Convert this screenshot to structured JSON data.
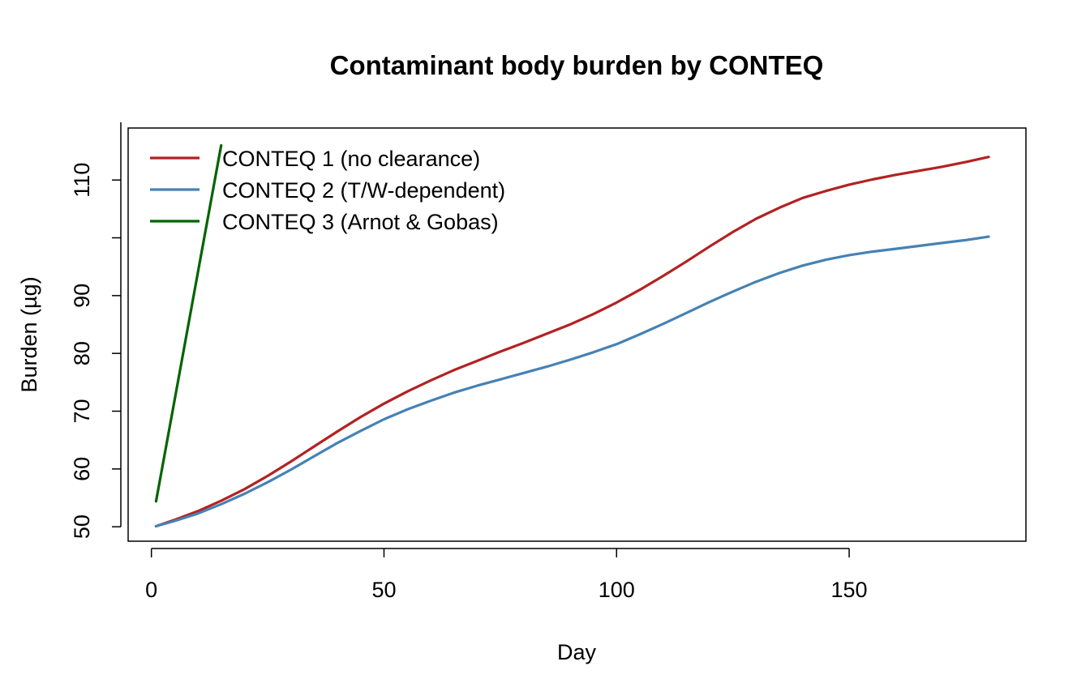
{
  "chart_data": {
    "type": "line",
    "title": "Contaminant body burden by CONTEQ",
    "xlabel": "Day",
    "ylabel": "Burden (µg)",
    "xlim": [
      -5,
      188
    ],
    "ylim": [
      47.5,
      119
    ],
    "x_ticks": [
      0,
      50,
      100,
      150
    ],
    "y_ticks": [
      50,
      60,
      70,
      80,
      90,
      100,
      110
    ],
    "y_tick_labels": [
      "50",
      "60",
      "70",
      "80",
      "90",
      "",
      "110"
    ],
    "grid": false,
    "legend_position": "top-left",
    "series": [
      {
        "name": "CONTEQ 1 (no clearance)",
        "color": "#B22222",
        "x": [
          1,
          5,
          10,
          15,
          20,
          25,
          30,
          35,
          40,
          45,
          50,
          55,
          60,
          65,
          70,
          75,
          80,
          85,
          90,
          95,
          100,
          105,
          110,
          115,
          120,
          125,
          130,
          135,
          140,
          145,
          150,
          155,
          160,
          165,
          170,
          175,
          180
        ],
        "y": [
          50.1,
          51.2,
          52.7,
          54.5,
          56.5,
          58.8,
          61.3,
          63.9,
          66.5,
          69.0,
          71.3,
          73.4,
          75.3,
          77.1,
          78.7,
          80.3,
          81.8,
          83.4,
          85.0,
          86.8,
          88.8,
          91.0,
          93.4,
          95.9,
          98.5,
          101.0,
          103.3,
          105.2,
          106.9,
          108.1,
          109.2,
          110.1,
          110.9,
          111.6,
          112.3,
          113.1,
          114.0
        ]
      },
      {
        "name": "CONTEQ 2 (T/W-dependent)",
        "color": "#4682B4",
        "x": [
          1,
          5,
          10,
          15,
          20,
          25,
          30,
          35,
          40,
          45,
          50,
          55,
          60,
          65,
          70,
          75,
          80,
          85,
          90,
          95,
          100,
          105,
          110,
          115,
          120,
          125,
          130,
          135,
          140,
          145,
          150,
          155,
          160,
          165,
          170,
          175,
          180
        ],
        "y": [
          50.1,
          51.0,
          52.3,
          53.9,
          55.7,
          57.7,
          59.9,
          62.2,
          64.5,
          66.6,
          68.6,
          70.3,
          71.8,
          73.2,
          74.4,
          75.5,
          76.6,
          77.7,
          78.9,
          80.2,
          81.6,
          83.3,
          85.1,
          87.0,
          88.9,
          90.7,
          92.4,
          93.9,
          95.2,
          96.2,
          97.0,
          97.6,
          98.1,
          98.6,
          99.1,
          99.6,
          100.2
        ]
      },
      {
        "name": "CONTEQ 3 (Arnot & Gobas)",
        "color": "#006400",
        "x": [
          1,
          5,
          10,
          15
        ],
        "y": [
          54.4,
          72.0,
          94.0,
          116.0
        ]
      }
    ]
  }
}
